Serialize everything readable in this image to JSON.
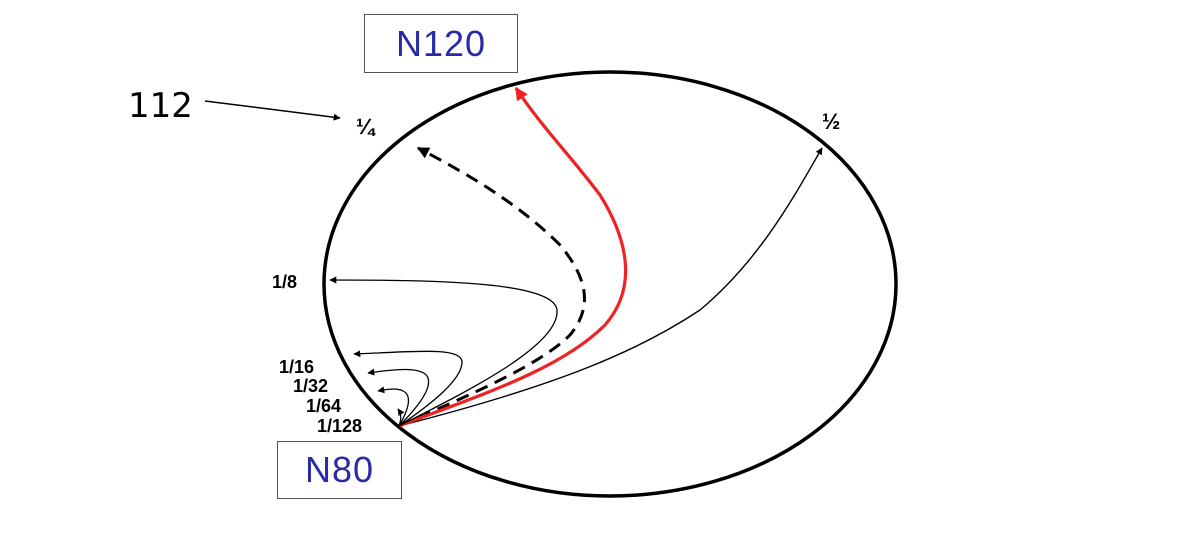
{
  "colors": {
    "node_text": "#2a2aa8",
    "ring": "#000000",
    "highlight_path": "#ee2222"
  },
  "nodes": {
    "top": "N120",
    "bottom": "N80"
  },
  "outer_label": "112",
  "ring_labels": {
    "quarter": "¼",
    "half": "½",
    "eighth": "1/8",
    "sixteenth": "1/16",
    "thirty_second": "1/32",
    "sixty_fourth": "1/64",
    "one_twenty_eighth": "1/128"
  }
}
